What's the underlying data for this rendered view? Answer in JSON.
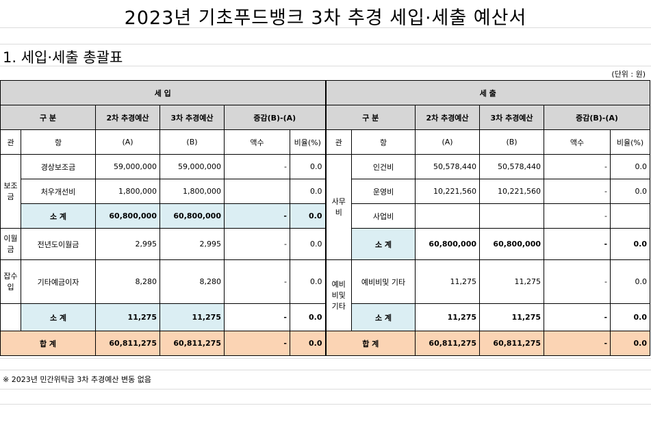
{
  "title": "2023년 기초푸드뱅크 3차 추경 세입·세출 예산서",
  "section": "1. 세입·세출 총괄표",
  "unit": "(단위 : 원)",
  "footnote": "※ 2023년 민간위탁금 3차 추경예산 변동 없음",
  "header": {
    "revenue": "세          입",
    "expense": "세          출",
    "gubun": "구        분",
    "budget2": "2차 추경예산",
    "budget3": "3차 추경예산",
    "diff": "증감(B)-(A)",
    "gwan": "관",
    "hang": "항",
    "a": "(A)",
    "b": "(B)",
    "amount": "액수",
    "ratio": "비율(%)"
  },
  "revenue": {
    "group1": "보조금",
    "row1": {
      "hang": "경상보조금",
      "a": "59,000,000",
      "b": "59,000,000",
      "amt": "-",
      "ratio": "0.0"
    },
    "row2": {
      "hang": "처우개선비",
      "a": "1,800,000",
      "b": "1,800,000",
      "amt": "",
      "ratio": "0.0"
    },
    "sub1": {
      "label": "소        계",
      "a": "60,800,000",
      "b": "60,800,000",
      "amt": "-",
      "ratio": "0.0"
    },
    "group2": "이월금",
    "row3": {
      "hang": "전년도이월금",
      "a": "2,995",
      "b": "2,995",
      "amt": "-",
      "ratio": "0.0"
    },
    "group3": "잡수입",
    "row4": {
      "hang": "기타예금이자",
      "a": "8,280",
      "b": "8,280",
      "amt": "-",
      "ratio": "0.0"
    },
    "sub2": {
      "label": "소        계",
      "a": "11,275",
      "b": "11,275",
      "amt": "-",
      "ratio": "0.0"
    }
  },
  "expense": {
    "group1": "사무비",
    "row1": {
      "hang": "인건비",
      "a": "50,578,440",
      "b": "50,578,440",
      "amt": "-",
      "ratio": "0.0"
    },
    "row2": {
      "hang": "운영비",
      "a": "10,221,560",
      "b": "10,221,560",
      "amt": "-",
      "ratio": "0.0"
    },
    "row3": {
      "hang": "사업비",
      "a": "",
      "b": "",
      "amt": "-",
      "ratio": ""
    },
    "sub1": {
      "label": "소        계",
      "a": "60,800,000",
      "b": "60,800,000",
      "amt": "-",
      "ratio": "0.0"
    },
    "group2": "예비비및기타",
    "row4": {
      "hang": "예비비및 기타",
      "a": "11,275",
      "b": "11,275",
      "amt": "-",
      "ratio": "0.0"
    },
    "sub2": {
      "label": "소        계",
      "a": "11,275",
      "b": "11,275",
      "amt": "-",
      "ratio": "0.0"
    }
  },
  "total": {
    "label": "합          계",
    "rev": {
      "a": "60,811,275",
      "b": "60,811,275",
      "amt": "-",
      "ratio": "0.0"
    },
    "exp": {
      "a": "60,811,275",
      "b": "60,811,275",
      "amt": "-",
      "ratio": "0.0"
    }
  }
}
